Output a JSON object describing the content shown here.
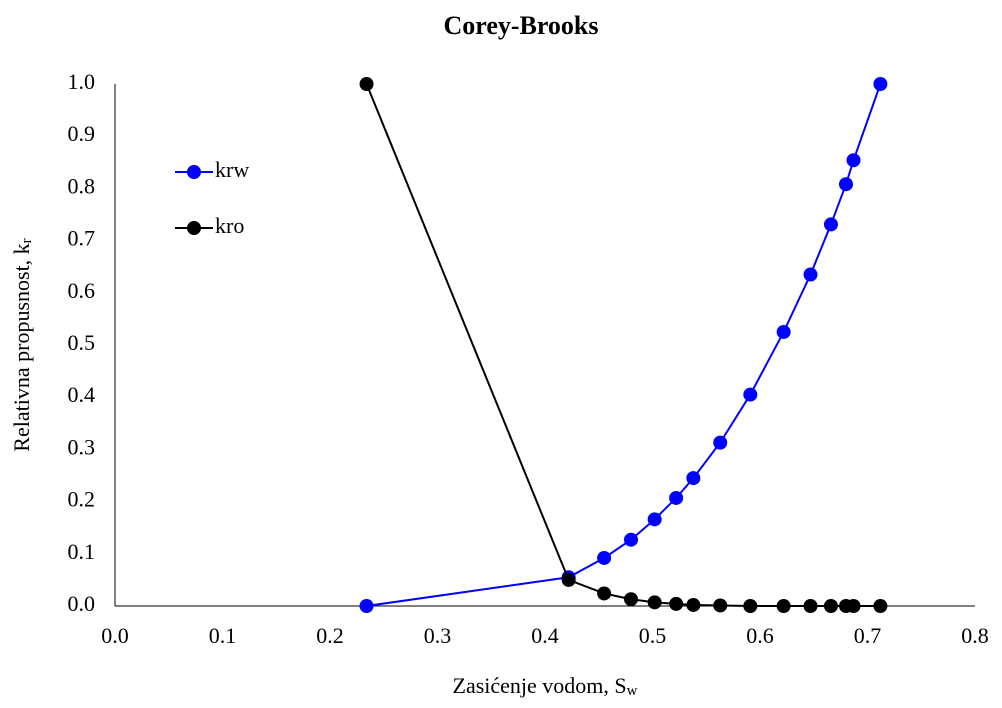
{
  "chart_data": {
    "type": "line",
    "title": "Corey-Brooks",
    "x_label": "Zasićenje vodom, S",
    "x_label_sub": "w",
    "y_label": "Relativna propusnost, k",
    "y_label_sub": "r",
    "x": [
      0.234,
      0.422,
      0.455,
      0.48,
      0.502,
      0.522,
      0.538,
      0.563,
      0.591,
      0.622,
      0.647,
      0.666,
      0.68,
      0.687,
      0.712
    ],
    "series": [
      {
        "name": "krw",
        "color": "#0000ff",
        "values": [
          0,
          0.055,
          0.092,
          0.127,
          0.166,
          0.207,
          0.245,
          0.313,
          0.405,
          0.525,
          0.635,
          0.731,
          0.808,
          0.854,
          1.0
        ]
      },
      {
        "name": "kro",
        "color": "#000000",
        "values": [
          1.0,
          0.05,
          0.024,
          0.013,
          0.007,
          0.004,
          0.002,
          0.001,
          0,
          0,
          0,
          0,
          0,
          0,
          0
        ]
      }
    ],
    "xlim": [
      0,
      0.8
    ],
    "xticks": [
      {
        "value": 0,
        "label": "0.0"
      },
      0.1,
      0.2,
      0.3,
      0.4,
      0.5,
      0.6,
      0.7,
      0.8
    ],
    "ylim": [
      0,
      1.0
    ],
    "yticks": [
      {
        "value": 0,
        "label": "0.0"
      },
      0.1,
      0.2,
      0.3,
      0.4,
      0.5,
      0.6,
      0.7,
      0.8,
      0.9,
      {
        "value": 1.0,
        "label": "1.0"
      }
    ],
    "grid": false,
    "legend": "upper left"
  }
}
